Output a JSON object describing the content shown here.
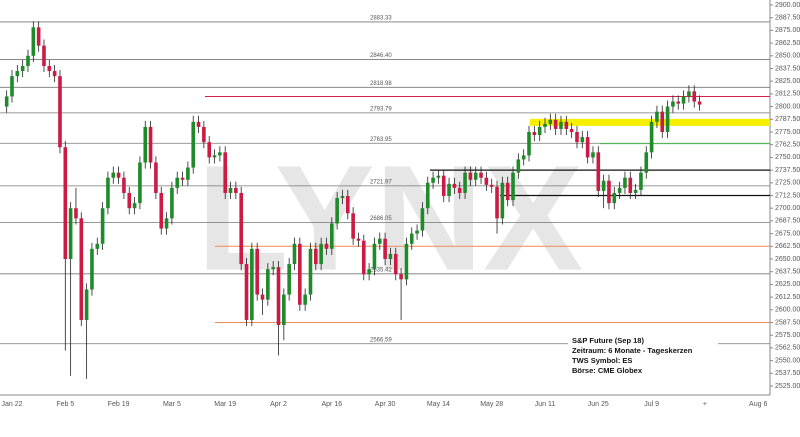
{
  "chart_data": {
    "type": "candlestick",
    "watermark": "LYNX",
    "annotations": [
      "S&P Future (Sep 18)",
      "Zeitraum: 6 Monate - Tageskerzen",
      "TWS Symbol: ES",
      "Börse: CME Globex"
    ],
    "categories": [
      null,
      "Jan 22",
      null,
      null,
      null,
      null,
      null,
      null,
      null,
      null,
      null,
      "Feb 5",
      null,
      null,
      null,
      null,
      null,
      null,
      null,
      null,
      null,
      "Feb 19",
      null,
      null,
      null,
      null,
      null,
      null,
      null,
      null,
      null,
      "Mar 5",
      null,
      null,
      null,
      null,
      null,
      null,
      null,
      null,
      null,
      "Mar 19",
      null,
      null,
      null,
      null,
      null,
      null,
      null,
      null,
      null,
      "Apr 2",
      null,
      null,
      null,
      null,
      null,
      null,
      null,
      null,
      null,
      "Apr 16",
      null,
      null,
      null,
      null,
      null,
      null,
      null,
      null,
      null,
      "Apr 30",
      null,
      null,
      null,
      null,
      null,
      null,
      null,
      null,
      null,
      "May 14",
      null,
      null,
      null,
      null,
      null,
      null,
      null,
      null,
      null,
      "May 28",
      null,
      null,
      null,
      null,
      null,
      null,
      null,
      null,
      null,
      "Jun 11",
      null,
      null,
      null,
      null,
      null,
      null,
      null,
      null,
      null,
      "Jun 25",
      null,
      null,
      null,
      null,
      null,
      null,
      null,
      null,
      null,
      "Jul 9",
      null,
      null,
      null,
      null,
      null,
      null,
      null,
      null,
      null,
      "+",
      null,
      null,
      null,
      null,
      null,
      null,
      null,
      null,
      null,
      "Aug 6"
    ],
    "open": [
      2800,
      2810,
      2830,
      2835,
      2840,
      2850,
      2878,
      2860,
      2840,
      2835,
      2830,
      2760,
      2650,
      2700,
      2690,
      2590,
      2620,
      2660,
      2665,
      2700,
      2730,
      2735,
      2730,
      2715,
      2700,
      2705,
      2745,
      2780,
      2745,
      2715,
      2680,
      2690,
      2720,
      2730,
      2728,
      2740,
      2785,
      2780,
      2765,
      2750,
      2752,
      2755,
      2715,
      2720,
      2715,
      2645,
      2590,
      2660,
      2615,
      2610,
      2640,
      2642,
      2585,
      2615,
      2645,
      2665,
      2605,
      2615,
      2660,
      2645,
      2665,
      2660,
      2685,
      2710,
      2712,
      2695,
      2670,
      2668,
      2635,
      2640,
      2665,
      2670,
      2650,
      2655,
      2635,
      2630,
      2665,
      2675,
      2678,
      2700,
      2725,
      2730,
      2732,
      2712,
      2724,
      2720,
      2715,
      2735,
      2728,
      2735,
      2730,
      2723,
      2721,
      2690,
      2725,
      2708,
      2735,
      2748,
      2752,
      2775,
      2772,
      2780,
      2783,
      2787,
      2778,
      2785,
      2778,
      2775,
      2765,
      2770,
      2750,
      2755,
      2717,
      2727,
      2705,
      2715,
      2720,
      2730,
      2715,
      2718,
      2735,
      2755,
      2785,
      2795,
      2775,
      2800,
      2805,
      2803,
      2810,
      2815,
      2805,
      null,
      null,
      null,
      null,
      null,
      null,
      null,
      null,
      null,
      null,
      null
    ],
    "high": [
      2816,
      2836,
      2841,
      2846,
      2856,
      2884,
      2884,
      2866,
      2846,
      2841,
      2836,
      2766,
      2706,
      2720,
      2696,
      2626,
      2666,
      2671,
      2706,
      2736,
      2741,
      2741,
      2736,
      2721,
      2711,
      2751,
      2786,
      2786,
      2751,
      2721,
      2696,
      2726,
      2736,
      2736,
      2746,
      2791,
      2791,
      2786,
      2771,
      2758,
      2761,
      2761,
      2726,
      2726,
      2721,
      2651,
      2666,
      2666,
      2621,
      2646,
      2648,
      2648,
      2621,
      2651,
      2671,
      2671,
      2621,
      2666,
      2666,
      2671,
      2671,
      2691,
      2716,
      2718,
      2718,
      2701,
      2676,
      2674,
      2646,
      2671,
      2676,
      2676,
      2661,
      2661,
      2641,
      2671,
      2681,
      2684,
      2706,
      2731,
      2736,
      2738,
      2738,
      2730,
      2730,
      2726,
      2741,
      2741,
      2741,
      2741,
      2736,
      2729,
      2727,
      2731,
      2731,
      2741,
      2754,
      2758,
      2781,
      2781,
      2786,
      2789,
      2793,
      2793,
      2791,
      2791,
      2784,
      2781,
      2776,
      2776,
      2761,
      2761,
      2733,
      2733,
      2721,
      2726,
      2736,
      2736,
      2724,
      2741,
      2761,
      2791,
      2801,
      2801,
      2806,
      2811,
      2811,
      2816,
      2821,
      2821,
      2811,
      null,
      null,
      null,
      null,
      null,
      null,
      null,
      null,
      null,
      null,
      null
    ],
    "low": [
      2794,
      2804,
      2824,
      2829,
      2834,
      2844,
      2854,
      2834,
      2829,
      2824,
      2754,
      2560,
      2535,
      2684,
      2584,
      2532,
      2614,
      2654,
      2659,
      2694,
      2724,
      2724,
      2709,
      2694,
      2694,
      2699,
      2739,
      2739,
      2709,
      2674,
      2674,
      2684,
      2714,
      2722,
      2722,
      2734,
      2774,
      2759,
      2744,
      2744,
      2746,
      2709,
      2709,
      2709,
      2639,
      2584,
      2584,
      2609,
      2595,
      2604,
      2634,
      2555,
      2570,
      2609,
      2639,
      2599,
      2599,
      2609,
      2639,
      2639,
      2654,
      2654,
      2679,
      2704,
      2689,
      2664,
      2662,
      2629,
      2629,
      2634,
      2659,
      2644,
      2644,
      2629,
      2590,
      2624,
      2659,
      2669,
      2672,
      2694,
      2719,
      2724,
      2706,
      2706,
      2714,
      2709,
      2709,
      2722,
      2722,
      2724,
      2717,
      2715,
      2675,
      2684,
      2702,
      2702,
      2729,
      2742,
      2746,
      2766,
      2766,
      2774,
      2777,
      2772,
      2772,
      2772,
      2769,
      2759,
      2759,
      2744,
      2744,
      2711,
      2700,
      2699,
      2699,
      2709,
      2714,
      2709,
      2709,
      2712,
      2729,
      2749,
      2779,
      2769,
      2769,
      2794,
      2797,
      2797,
      2804,
      2799,
      2796,
      null,
      null,
      null,
      null,
      null,
      null,
      null,
      null,
      null,
      null,
      null
    ],
    "close": [
      2810,
      2830,
      2835,
      2840,
      2850,
      2878,
      2860,
      2840,
      2835,
      2830,
      2760,
      2650,
      2700,
      2690,
      2590,
      2620,
      2660,
      2665,
      2700,
      2730,
      2735,
      2730,
      2715,
      2700,
      2705,
      2745,
      2780,
      2745,
      2715,
      2680,
      2690,
      2720,
      2730,
      2728,
      2740,
      2785,
      2780,
      2765,
      2750,
      2752,
      2755,
      2715,
      2720,
      2715,
      2645,
      2590,
      2660,
      2615,
      2610,
      2640,
      2642,
      2585,
      2615,
      2645,
      2665,
      2605,
      2615,
      2660,
      2645,
      2665,
      2660,
      2685,
      2710,
      2712,
      2695,
      2670,
      2668,
      2635,
      2640,
      2665,
      2670,
      2650,
      2655,
      2635,
      2630,
      2665,
      2675,
      2678,
      2700,
      2725,
      2730,
      2732,
      2712,
      2724,
      2720,
      2715,
      2735,
      2728,
      2735,
      2730,
      2723,
      2721,
      2690,
      2725,
      2708,
      2735,
      2748,
      2752,
      2775,
      2772,
      2780,
      2783,
      2787,
      2778,
      2785,
      2778,
      2775,
      2765,
      2770,
      2750,
      2755,
      2717,
      2727,
      2705,
      2715,
      2720,
      2730,
      2715,
      2718,
      2735,
      2755,
      2785,
      2795,
      2775,
      2800,
      2805,
      2803,
      2810,
      2815,
      2805,
      2802,
      null,
      null,
      null,
      null,
      null,
      null,
      null,
      null,
      null,
      null,
      null
    ],
    "up_color": "#1f8a2a",
    "down_color": "#cc1a44",
    "levels": [
      {
        "value": 2883.33,
        "label": "2883.33"
      },
      {
        "value": 2846.4,
        "label": "2846.40"
      },
      {
        "value": 2818.98,
        "label": "2818.98"
      },
      {
        "value": 2793.79,
        "label": "2793.79"
      },
      {
        "value": 2763.95,
        "label": "2763.95"
      },
      {
        "value": 2721.97,
        "label": "2721.97"
      },
      {
        "value": 2686.05,
        "label": "2686.05"
      },
      {
        "value": 2635.42,
        "label": "2635.42"
      },
      {
        "value": 2566.59,
        "label": "2566.59"
      }
    ],
    "lines": [
      {
        "value": 2810,
        "color": "#d8204c"
      },
      {
        "value": 2662.5,
        "color": "#ee8a55"
      },
      {
        "value": 2587.5,
        "color": "#ee8a55"
      },
      {
        "value": 2784.5,
        "color": "#f4f000"
      },
      {
        "value": 2763.5,
        "color": "#4cc04c"
      },
      {
        "value": 2737.5,
        "color": "#111111"
      },
      {
        "value": 2712.5,
        "color": "#111111"
      }
    ],
    "ylim": [
      2525,
      2900
    ],
    "yticks": [
      {
        "value": 2900,
        "label": "2900.00"
      },
      {
        "value": 2887.5,
        "label": "2887.50"
      },
      {
        "value": 2875,
        "label": "2875.00"
      },
      {
        "value": 2862.5,
        "label": "2862.50"
      },
      {
        "value": 2850,
        "label": "2850.00"
      },
      {
        "value": 2837.5,
        "label": "2837.50"
      },
      {
        "value": 2825,
        "label": "2825.00"
      },
      {
        "value": 2812.5,
        "label": "2812.50"
      },
      {
        "value": 2800,
        "label": "2800.00"
      },
      {
        "value": 2787.5,
        "label": "2787.50"
      },
      {
        "value": 2775,
        "label": "2775.00"
      },
      {
        "value": 2762.5,
        "label": "2762.50"
      },
      {
        "value": 2750,
        "label": "2750.00"
      },
      {
        "value": 2737.5,
        "label": "2737.50"
      },
      {
        "value": 2725,
        "label": "2725.00"
      },
      {
        "value": 2712.5,
        "label": "2712.50"
      },
      {
        "value": 2700,
        "label": "2700.00"
      },
      {
        "value": 2687.5,
        "label": "2687.50"
      },
      {
        "value": 2675,
        "label": "2675.00"
      },
      {
        "value": 2662.5,
        "label": "2662.50"
      },
      {
        "value": 2650,
        "label": "2650.00"
      },
      {
        "value": 2637.5,
        "label": "2637.50"
      },
      {
        "value": 2625,
        "label": "2625.00"
      },
      {
        "value": 2612.5,
        "label": "2612.50"
      },
      {
        "value": 2600,
        "label": "2600.00"
      },
      {
        "value": 2587.5,
        "label": "2587.50"
      },
      {
        "value": 2575,
        "label": "2575.00"
      },
      {
        "value": 2562.5,
        "label": "2562.50"
      },
      {
        "value": 2550,
        "label": "2550.00"
      },
      {
        "value": 2537.5,
        "label": "2537.50"
      },
      {
        "value": 2525,
        "label": "2525.00"
      }
    ]
  }
}
